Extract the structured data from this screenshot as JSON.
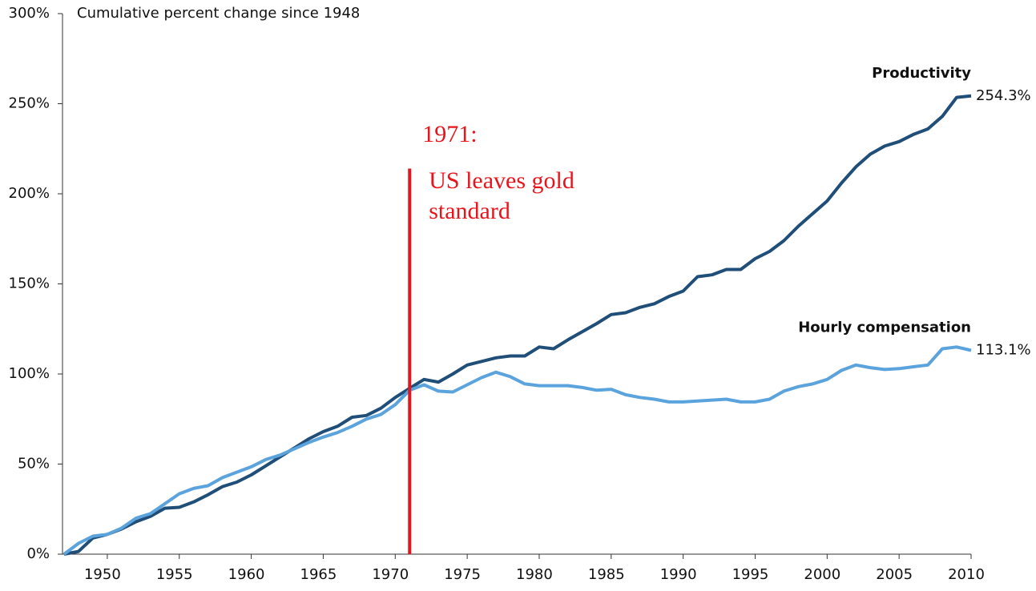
{
  "chart_data": {
    "type": "line",
    "ylabel": "Cumulative percent change since 1948",
    "x": [
      1947,
      1948,
      1949,
      1950,
      1951,
      1952,
      1953,
      1954,
      1955,
      1956,
      1957,
      1958,
      1959,
      1960,
      1961,
      1962,
      1963,
      1964,
      1965,
      1966,
      1967,
      1968,
      1969,
      1970,
      1971,
      1972,
      1973,
      1974,
      1975,
      1976,
      1977,
      1978,
      1979,
      1980,
      1981,
      1982,
      1983,
      1984,
      1985,
      1986,
      1987,
      1988,
      1989,
      1990,
      1991,
      1992,
      1993,
      1994,
      1995,
      1996,
      1997,
      1998,
      1999,
      2000,
      2001,
      2002,
      2003,
      2004,
      2005,
      2006,
      2007,
      2008,
      2009,
      2010
    ],
    "xlim": [
      1947,
      2010
    ],
    "xticks": [
      1950,
      1955,
      1960,
      1965,
      1970,
      1975,
      1980,
      1985,
      1990,
      1995,
      2000,
      2005,
      2010
    ],
    "ylim": [
      0,
      300
    ],
    "yticks": [
      {
        "value": 0,
        "label": "0%"
      },
      {
        "value": 50,
        "label": "50%"
      },
      {
        "value": 100,
        "label": "100%"
      },
      {
        "value": 150,
        "label": "150%"
      },
      {
        "value": 200,
        "label": "200%"
      },
      {
        "value": 250,
        "label": "250%"
      },
      {
        "value": 300,
        "label": "300%"
      }
    ],
    "series": [
      {
        "name": "Productivity",
        "color": "#1f4e79",
        "values": [
          0,
          1.5,
          9,
          11,
          14,
          18,
          21,
          25.5,
          26,
          29,
          33,
          37.5,
          40,
          44,
          49,
          54,
          59,
          64,
          68,
          71,
          76,
          77,
          81,
          87,
          92,
          97,
          95.5,
          100,
          105,
          107,
          109,
          110,
          110,
          115,
          114,
          119,
          123.5,
          128,
          133,
          134,
          137,
          139,
          143,
          146,
          154,
          155,
          158,
          158,
          164,
          168,
          174,
          182,
          189,
          196,
          206,
          215,
          222,
          226.5,
          229,
          233,
          236,
          243,
          253.5,
          254.3
        ],
        "value_labels": [
          null,
          null,
          null,
          null,
          null,
          null,
          null,
          null,
          null,
          null,
          null,
          null,
          null,
          null,
          null,
          null,
          null,
          null,
          null,
          null,
          null,
          null,
          null,
          null,
          null,
          null,
          null,
          null,
          null,
          null,
          null,
          null,
          null,
          null,
          null,
          null,
          null,
          null,
          null,
          null,
          null,
          null,
          null,
          null,
          null,
          null,
          null,
          null,
          null,
          null,
          null,
          null,
          null,
          null,
          null,
          null,
          null,
          null,
          null,
          null,
          null,
          null,
          null,
          "254.3%"
        ]
      },
      {
        "name": "Hourly compensation",
        "color": "#5ba3dc",
        "values": [
          0,
          6,
          10,
          11,
          14.5,
          20,
          22.5,
          28,
          33.5,
          36.5,
          38,
          42.5,
          45.5,
          48.5,
          52.5,
          55,
          58.5,
          62,
          65,
          67.5,
          71,
          75,
          77.5,
          83,
          91,
          94,
          90.5,
          90,
          94,
          98,
          101,
          98.5,
          94.5,
          93.5,
          93.5,
          93.5,
          92.5,
          91,
          91.5,
          88.5,
          87,
          86,
          84.5,
          84.5,
          85,
          85.5,
          86,
          84.5,
          84.5,
          86,
          90.5,
          93,
          94.5,
          97,
          102,
          105,
          103.5,
          102.5,
          103,
          104,
          105,
          114,
          115,
          113.1
        ],
        "value_labels": [
          null,
          null,
          null,
          null,
          null,
          null,
          null,
          null,
          null,
          null,
          null,
          null,
          null,
          null,
          null,
          null,
          null,
          null,
          null,
          null,
          null,
          null,
          null,
          null,
          null,
          null,
          null,
          null,
          null,
          null,
          null,
          null,
          null,
          null,
          null,
          null,
          null,
          null,
          null,
          null,
          null,
          null,
          null,
          null,
          null,
          null,
          null,
          null,
          null,
          null,
          null,
          null,
          null,
          null,
          null,
          null,
          null,
          null,
          null,
          null,
          null,
          null,
          null,
          "113.1%"
        ]
      }
    ],
    "vline": {
      "x": 1971,
      "top": 214,
      "color": "#e8141b",
      "text": [
        "1971:",
        "US leaves gold",
        "standard"
      ]
    }
  }
}
